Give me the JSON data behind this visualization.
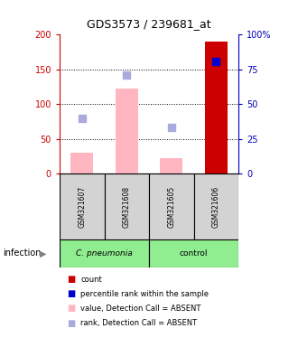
{
  "title": "GDS3573 / 239681_at",
  "samples": [
    "GSM321607",
    "GSM321608",
    "GSM321605",
    "GSM321606"
  ],
  "bar_values": [
    30,
    122,
    22,
    190
  ],
  "bar_colors": [
    "#FFB6C1",
    "#FFB6C1",
    "#FFB6C1",
    "#CC0000"
  ],
  "rank_squares": [
    80,
    142,
    67,
    162
  ],
  "rank_sq_colors": [
    "#AAAADD",
    "#AAAADD",
    "#AAAADD",
    "#0000CC"
  ],
  "rank_sq_sizes": [
    6,
    6,
    6,
    6
  ],
  "ylim_left": [
    0,
    200
  ],
  "ylim_right": [
    0,
    100
  ],
  "yticks_left": [
    0,
    50,
    100,
    150,
    200
  ],
  "yticks_right": [
    0,
    25,
    50,
    75,
    100
  ],
  "ytick_labels_left": [
    "0",
    "50",
    "100",
    "150",
    "200"
  ],
  "ytick_labels_right": [
    "0",
    "25",
    "50",
    "75",
    "100%"
  ],
  "dotted_lines": [
    50,
    100,
    150
  ],
  "group_label": "infection",
  "group1_label": "C. pneumonia",
  "group2_label": "control",
  "group1_color": "#90EE90",
  "group2_color": "#90EE90",
  "legend_items": [
    {
      "label": "count",
      "color": "#CC0000"
    },
    {
      "label": "percentile rank within the sample",
      "color": "#0000CC"
    },
    {
      "label": "value, Detection Call = ABSENT",
      "color": "#FFB6C1"
    },
    {
      "label": "rank, Detection Call = ABSENT",
      "color": "#AAAADD"
    }
  ],
  "left_axis_color": "#CC0000",
  "right_axis_color": "#0000BB",
  "bar_width": 0.5,
  "cell_facecolor": "#D3D3D3"
}
